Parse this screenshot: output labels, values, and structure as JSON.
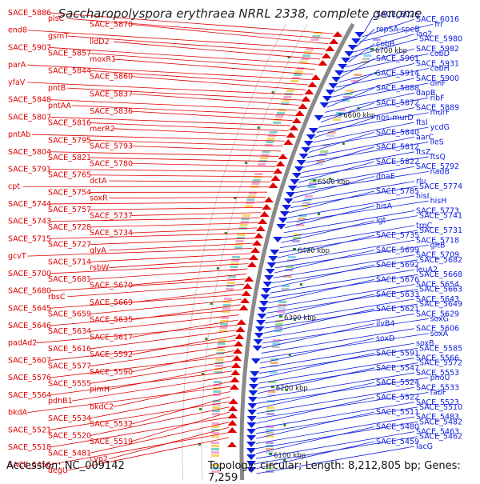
{
  "title": "Saccharopolyspora erythraea NRRL 2338, complete genome",
  "footer": {
    "accession": "Accession: NC_009142",
    "topology": "Topology: circular; Length: 8,212,805 bp; Genes: 7,259"
  },
  "colors": {
    "forward": "#e00000",
    "reverse": "#1020e0",
    "backbone": "#8a8a8a",
    "tick": "#2a8a2a"
  },
  "ticks": [
    "6700 kbp",
    "6600 kbp",
    "6500 kbp",
    "6400 kbp",
    "6300 kbp",
    "6200 kbp",
    "6100 kbp"
  ],
  "left_labels": [
    "SACE_5886",
    "plsC",
    "SACE_5870",
    "end8",
    "gsmT",
    "lldD2",
    "SACE_5907",
    "SACE_5857",
    "moxR1",
    "parA",
    "SACE_5844",
    "SACE_5860",
    "yfaV",
    "pntB",
    "SACE_5837",
    "SACE_5848",
    "pntAA",
    "SACE_5836",
    "SACE_5807",
    "SACE_5816",
    "merR2",
    "pntAb",
    "SACE_5795",
    "SACE_5793",
    "SACE_5804",
    "SACE_5821",
    "SACE_5780",
    "SACE_5791",
    "SACE_5765",
    "dctA",
    "cpt",
    "SACE_5754",
    "soxR",
    "SACE_5744",
    "SACE_5757",
    "SACE_5737",
    "SACE_5743",
    "SACE_5728",
    "SACE_5734",
    "SACE_5715",
    "SACE_5727",
    "glyA",
    "gcvT",
    "SACE_5714",
    "rsbW",
    "SACE_5700",
    "SACE_5681",
    "SACE_5670",
    "SACE_5680",
    "rbsC",
    "SACE_5669",
    "SACE_5645",
    "SACE_5659",
    "SACE_5635",
    "SACE_5646",
    "SACE_5634",
    "SACE_5617",
    "padAd2",
    "SACE_5616",
    "SACE_5592",
    "SACE_5607",
    "SACE_5577",
    "SACE_5590",
    "SACE_5576",
    "SACE_5555",
    "pimH",
    "SACE_5564",
    "pdhB1",
    "bkdC2",
    "bkdA",
    "SACE_5534",
    "SACE_5532",
    "SACE_5521",
    "SACE_5520",
    "SACE_5519",
    "SACE_5518",
    "SACE_5481",
    "cyp2",
    "SACE_5456",
    "degU"
  ],
  "right_labels": [
    "SACE_6026",
    "SACE_6016",
    "frr",
    "repSA-speB",
    "lao2",
    "SACE_5980",
    "cobB",
    "SACE_5982",
    "cobD",
    "SACE_5961",
    "SACE_5931",
    "cobH",
    "SACE_5914",
    "SACE_5900",
    "dinF",
    "SACE_5888",
    "dapB",
    "ribF",
    "SACE_5872",
    "SACE_5889",
    "murF",
    "nos-murD",
    "ftsI",
    "ycdG",
    "SACE_5840",
    "aarC",
    "ileS",
    "SACE_5812",
    "ftsZ",
    "ftsQ",
    "SACE_5822",
    "SACE_5792",
    "nadB",
    "dnaE",
    "rlu",
    "SACE_5774",
    "SACE_5785",
    "hisI",
    "hisH",
    "hisA",
    "SACE_5773",
    "SACE_5741",
    "lgt",
    "trpC",
    "SACE_5731",
    "SACE_5735",
    "SACE_5718",
    "gltB",
    "SACE_5699",
    "SACE_5709",
    "SACE_5682",
    "SACE_5692",
    "leuA2",
    "SACE_5668",
    "SACE_5676",
    "SACE_5654",
    "SACE_5663",
    "SACE_5633",
    "SACE_5643",
    "SACE_5649",
    "SACE_5621",
    "SACE_5629",
    "soxG",
    "ilvB4",
    "SACE_5606",
    "soxA",
    "soxD",
    "soxB",
    "SACE_5585",
    "SACE_5591",
    "SACE_5566",
    "SACE_5572",
    "SACE_5547",
    "SACE_5553",
    "phoU",
    "SACE_5524",
    "SACE_5533",
    "fabF",
    "SACE_5522",
    "SACE_5523",
    "SACE_5510",
    "SACE_5511",
    "SACE_5483",
    "SACE_5482",
    "SACE_5480",
    "SACE_5463",
    "SACE_5462",
    "SACE_5459",
    "lacG"
  ]
}
